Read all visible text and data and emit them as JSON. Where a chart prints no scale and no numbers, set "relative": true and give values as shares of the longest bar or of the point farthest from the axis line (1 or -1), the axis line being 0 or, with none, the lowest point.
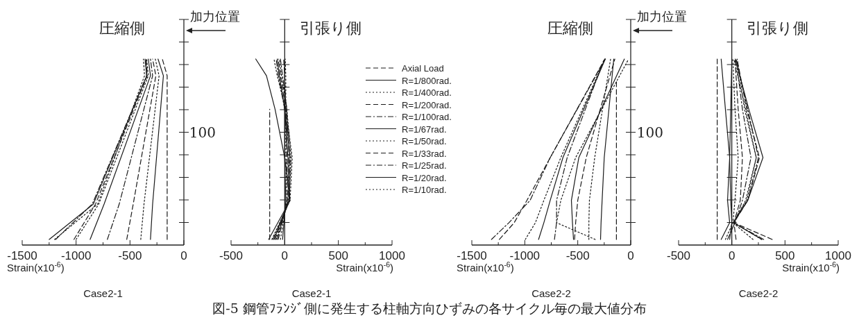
{
  "chart_data": [
    {
      "type": "line",
      "relative": true,
      "title": "圧縮側",
      "xlabel": "Strain(x10$^{-6}$)",
      "xlim": [
        -1500,
        0
      ],
      "xticks": [
        -1500,
        {
          "value": -1250,
          "label": null
        },
        -1000,
        {
          "value": -750,
          "label": null
        },
        -500,
        {
          "value": -250,
          "label": null
        },
        0
      ],
      "annotations": [
        "加力位置",
        "Case2-1",
        "図-5 鋼管ﾌﾗﾝｼﾞ側に発生する柱軸方向ひずみの各サイクル毎の最大値分布"
      ],
      "series": [
        {
          "color": "#1a1a1a",
          "line_style": "dashed",
          "x": [
            -155,
            -155,
            -200
          ],
          "values": [
            0.03,
            0.91,
            1
          ]
        },
        {
          "color": "#1a1a1a",
          "line_style": "solid",
          "x": [
            -310,
            -290,
            -190,
            -240
          ],
          "values": [
            0.03,
            0.22,
            0.91,
            1
          ]
        },
        {
          "color": "#1a1a1a",
          "line_style": "dotted",
          "x": [
            -400,
            -370,
            -230,
            -265
          ],
          "values": [
            0.03,
            0.22,
            0.91,
            1
          ]
        },
        {
          "color": "#1a1a1a",
          "line_style": "dashed",
          "x": [
            -530,
            -470,
            -260,
            -290
          ],
          "values": [
            0.03,
            0.22,
            0.91,
            1
          ]
        },
        {
          "color": "#1a1a1a",
          "line_style": "dashdot",
          "x": [
            -710,
            -600,
            -290,
            -310
          ],
          "values": [
            0.03,
            0.22,
            0.91,
            1
          ]
        },
        {
          "color": "#1a1a1a",
          "line_style": "solid",
          "x": [
            -870,
            -740,
            -310,
            -330
          ],
          "values": [
            0.03,
            0.22,
            0.91,
            1
          ]
        },
        {
          "color": "#1a1a1a",
          "line_style": "dotted",
          "x": [
            -1000,
            -790,
            -330,
            -345
          ],
          "values": [
            0.03,
            0.22,
            0.91,
            1
          ]
        },
        {
          "color": "#1a1a1a",
          "line_style": "dashed",
          "x": [
            -1020,
            -820,
            -340,
            -350
          ],
          "values": [
            0.03,
            0.22,
            0.91,
            1
          ]
        },
        {
          "color": "#1a1a1a",
          "line_style": "dashdot",
          "x": [
            -1190,
            -850,
            -345,
            -355
          ],
          "values": [
            0.03,
            0.22,
            0.91,
            1
          ]
        },
        {
          "color": "#1a1a1a",
          "line_style": "solid",
          "x": [
            -1250,
            -840,
            -345,
            -360
          ],
          "values": [
            0.03,
            0.22,
            0.91,
            1
          ]
        },
        {
          "color": "#1a1a1a",
          "line_style": "dotted",
          "x": [
            -1200,
            -800,
            -365,
            -375
          ],
          "values": [
            0.03,
            0.22,
            0.91,
            1
          ]
        }
      ]
    },
    {
      "type": "line",
      "relative": true,
      "title": "引張り側",
      "xlabel": "Strain(x10$^{-6}$)",
      "xlim": [
        -500,
        1000
      ],
      "xticks": [
        -500,
        {
          "value": -250,
          "label": null
        },
        0,
        {
          "value": 250,
          "label": null
        },
        500,
        {
          "value": 750,
          "label": null
        },
        1000
      ],
      "legend": "right",
      "annotations": [
        "100",
        "Case2-1"
      ],
      "series": [
        {
          "name": "Axial Load",
          "color": "#1a1a1a",
          "line_style": "dashed",
          "x": [
            -140,
            -140
          ],
          "values": [
            0.03,
            0.73
          ]
        },
        {
          "name": "R=1/800rad.",
          "color": "#1a1a1a",
          "line_style": "solid",
          "x": [
            -20,
            10,
            0,
            0,
            0,
            0
          ],
          "values": [
            0.03,
            0.24,
            0.47,
            0.73,
            0.91,
            1
          ]
        },
        {
          "name": "R=1/400rad.",
          "color": "#1a1a1a",
          "line_style": "dotted",
          "x": [
            -40,
            20,
            10,
            10,
            10,
            5
          ],
          "values": [
            0.03,
            0.24,
            0.47,
            0.73,
            0.91,
            1
          ]
        },
        {
          "name": "R=1/200rad.",
          "color": "#1a1a1a",
          "line_style": "dashed",
          "x": [
            -60,
            25,
            20,
            10,
            0,
            -10
          ],
          "values": [
            0.03,
            0.24,
            0.47,
            0.73,
            0.91,
            1
          ]
        },
        {
          "name": "R=1/100rad.",
          "color": "#1a1a1a",
          "line_style": "dashdot",
          "x": [
            -70,
            30,
            40,
            20,
            -20,
            -40
          ],
          "values": [
            0.03,
            0.24,
            0.47,
            0.73,
            0.91,
            1
          ]
        },
        {
          "name": "R=1/67rad.",
          "color": "#1a1a1a",
          "line_style": "solid",
          "x": [
            -100,
            40,
            30,
            0,
            -50,
            -70
          ],
          "values": [
            0.03,
            0.24,
            0.47,
            0.73,
            0.91,
            1
          ]
        },
        {
          "name": "R=1/50rad.",
          "color": "#1a1a1a",
          "line_style": "dotted",
          "x": [
            -80,
            40,
            60,
            20,
            -30,
            -50
          ],
          "values": [
            0.03,
            0.24,
            0.47,
            0.73,
            0.91,
            1
          ]
        },
        {
          "name": "R=1/33rad.",
          "color": "#1a1a1a",
          "line_style": "dashed",
          "x": [
            -90,
            40,
            50,
            10,
            -40,
            -60
          ],
          "values": [
            0.03,
            0.24,
            0.47,
            0.73,
            0.91,
            1
          ]
        },
        {
          "name": "R=1/25rad.",
          "color": "#1a1a1a",
          "line_style": "dashdot",
          "x": [
            -110,
            45,
            50,
            0,
            -60,
            -80
          ],
          "values": [
            0.03,
            0.24,
            0.47,
            0.73,
            0.91,
            1
          ]
        },
        {
          "name": "R=1/20rad.",
          "color": "#1a1a1a",
          "line_style": "solid",
          "x": [
            -150,
            50,
            0,
            -90,
            -170,
            -270
          ],
          "values": [
            0.03,
            0.24,
            0.47,
            0.73,
            0.91,
            1
          ]
        },
        {
          "name": "R=1/10rad.",
          "color": "#1a1a1a",
          "line_style": "dotted",
          "x": [
            -120,
            50,
            70,
            10,
            -70,
            -100
          ],
          "values": [
            0.03,
            0.24,
            0.47,
            0.73,
            0.91,
            1
          ]
        }
      ]
    },
    {
      "type": "line",
      "relative": true,
      "title": "圧縮側",
      "xlabel": "Strain(x10$^{-6}$)",
      "xlim": [
        -1500,
        0
      ],
      "xticks": [
        -1500,
        {
          "value": -1250,
          "label": null
        },
        -1000,
        {
          "value": -750,
          "label": null
        },
        -500,
        {
          "value": -250,
          "label": null
        },
        0
      ],
      "annotations": [
        "加力位置",
        "Case2-2"
      ],
      "series": [
        {
          "color": "#1a1a1a",
          "line_style": "dashed",
          "x": [
            -135,
            -135
          ],
          "values": [
            0.03,
            0.88
          ]
        },
        {
          "color": "#1a1a1a",
          "line_style": "solid",
          "x": [
            -285,
            -280,
            -270,
            -250,
            -160
          ],
          "values": [
            0.03,
            0.12,
            0.24,
            0.47,
            1
          ]
        },
        {
          "color": "#1a1a1a",
          "line_style": "dotted",
          "x": [
            -395,
            -395,
            -390,
            -340,
            -190
          ],
          "values": [
            0.03,
            0.12,
            0.24,
            0.47,
            1
          ]
        },
        {
          "color": "#1a1a1a",
          "line_style": "dashed",
          "x": [
            -530,
            -520,
            -500,
            -420,
            -150
          ],
          "values": [
            0.03,
            0.12,
            0.24,
            0.47,
            1
          ]
        },
        {
          "color": "#1a1a1a",
          "line_style": "dashdot",
          "x": [
            -720,
            -700,
            -700,
            -600,
            -250
          ],
          "values": [
            0.03,
            0.12,
            0.24,
            0.47,
            1
          ]
        },
        {
          "color": "#1a1a1a",
          "line_style": "solid",
          "x": [
            -540,
            -550,
            -560,
            -490,
            -60
          ],
          "values": [
            0.03,
            0.12,
            0.24,
            0.47,
            1
          ]
        },
        {
          "color": "#1a1a1a",
          "line_style": "dotted",
          "x": [
            -995,
            -900,
            -820,
            -660,
            -245
          ],
          "values": [
            0.03,
            0.12,
            0.24,
            0.47,
            1
          ]
        },
        {
          "color": "#1a1a1a",
          "line_style": "dashed",
          "x": [
            -1240,
            -1100,
            -980,
            -760,
            -245
          ],
          "values": [
            0.03,
            0.12,
            0.24,
            0.47,
            1
          ]
        },
        {
          "color": "#1a1a1a",
          "line_style": "dashdot",
          "x": [
            -1315,
            -1150,
            -950,
            -760,
            -240
          ],
          "values": [
            0.03,
            0.12,
            0.24,
            0.47,
            1
          ]
        },
        {
          "color": "#1a1a1a",
          "line_style": "solid",
          "x": [
            -870,
            -820,
            -760,
            -640,
            -240
          ],
          "values": [
            0.03,
            0.12,
            0.24,
            0.47,
            1
          ]
        },
        {
          "color": "#1a1a1a",
          "line_style": "dotted",
          "x": [
            -335,
            -700,
            -660,
            -520,
            -20
          ],
          "values": [
            0.03,
            0.12,
            0.24,
            0.47,
            1
          ]
        }
      ]
    },
    {
      "type": "line",
      "relative": true,
      "title": "引張り側",
      "xlabel": "Strain(x10$^{-6}$)",
      "xlim": [
        -500,
        1000
      ],
      "xticks": [
        -500,
        {
          "value": -250,
          "label": null
        },
        0,
        {
          "value": 250,
          "label": null
        },
        500,
        {
          "value": 750,
          "label": null
        },
        1000
      ],
      "annotations": [
        "100",
        "Case2-2"
      ],
      "series": [
        {
          "color": "#1a1a1a",
          "line_style": "dashed",
          "x": [
            -137,
            -137
          ],
          "values": [
            0.03,
            1
          ]
        },
        {
          "color": "#1a1a1a",
          "line_style": "solid",
          "x": [
            -20,
            0,
            -10,
            -20,
            -10,
            0
          ],
          "values": [
            0.03,
            0.12,
            0.24,
            0.47,
            0.73,
            1
          ]
        },
        {
          "color": "#1a1a1a",
          "line_style": "dotted",
          "x": [
            -60,
            10,
            30,
            60,
            30,
            10
          ],
          "values": [
            0.03,
            0.12,
            0.24,
            0.47,
            0.73,
            1
          ]
        },
        {
          "color": "#1a1a1a",
          "line_style": "dashed",
          "x": [
            40,
            20,
            80,
            100,
            60,
            30
          ],
          "values": [
            0.03,
            0.12,
            0.24,
            0.47,
            0.73,
            1
          ]
        },
        {
          "color": "#1a1a1a",
          "line_style": "dashdot",
          "x": [
            -40,
            30,
            100,
            180,
            100,
            40
          ],
          "values": [
            0.03,
            0.12,
            0.24,
            0.47,
            0.73,
            1
          ]
        },
        {
          "color": "#1a1a1a",
          "line_style": "solid",
          "x": [
            -100,
            -20,
            -40,
            -20,
            -60,
            -100
          ],
          "values": [
            0.03,
            0.12,
            0.24,
            0.47,
            0.73,
            1
          ]
        },
        {
          "color": "#1a1a1a",
          "line_style": "dotted",
          "x": [
            280,
            20,
            130,
            230,
            120,
            50
          ],
          "values": [
            0.03,
            0.12,
            0.24,
            0.47,
            0.73,
            1
          ]
        },
        {
          "color": "#1a1a1a",
          "line_style": "dashed",
          "x": [
            380,
            20,
            150,
            260,
            140,
            50
          ],
          "values": [
            0.03,
            0.12,
            0.24,
            0.47,
            0.73,
            1
          ]
        },
        {
          "color": "#1a1a1a",
          "line_style": "dashdot",
          "x": [
            300,
            15,
            150,
            250,
            150,
            40
          ],
          "values": [
            0.03,
            0.12,
            0.24,
            0.47,
            0.73,
            1
          ]
        },
        {
          "color": "#1a1a1a",
          "line_style": "solid",
          "x": [
            283,
            15,
            150,
            293,
            160,
            33
          ],
          "values": [
            0.03,
            0.12,
            0.24,
            0.47,
            0.73,
            1
          ]
        },
        {
          "color": "#1a1a1a",
          "line_style": "dotted",
          "x": [
            200,
            10,
            140,
            230,
            130,
            20
          ],
          "values": [
            0.03,
            0.12,
            0.24,
            0.47,
            0.73,
            1
          ]
        }
      ]
    }
  ]
}
